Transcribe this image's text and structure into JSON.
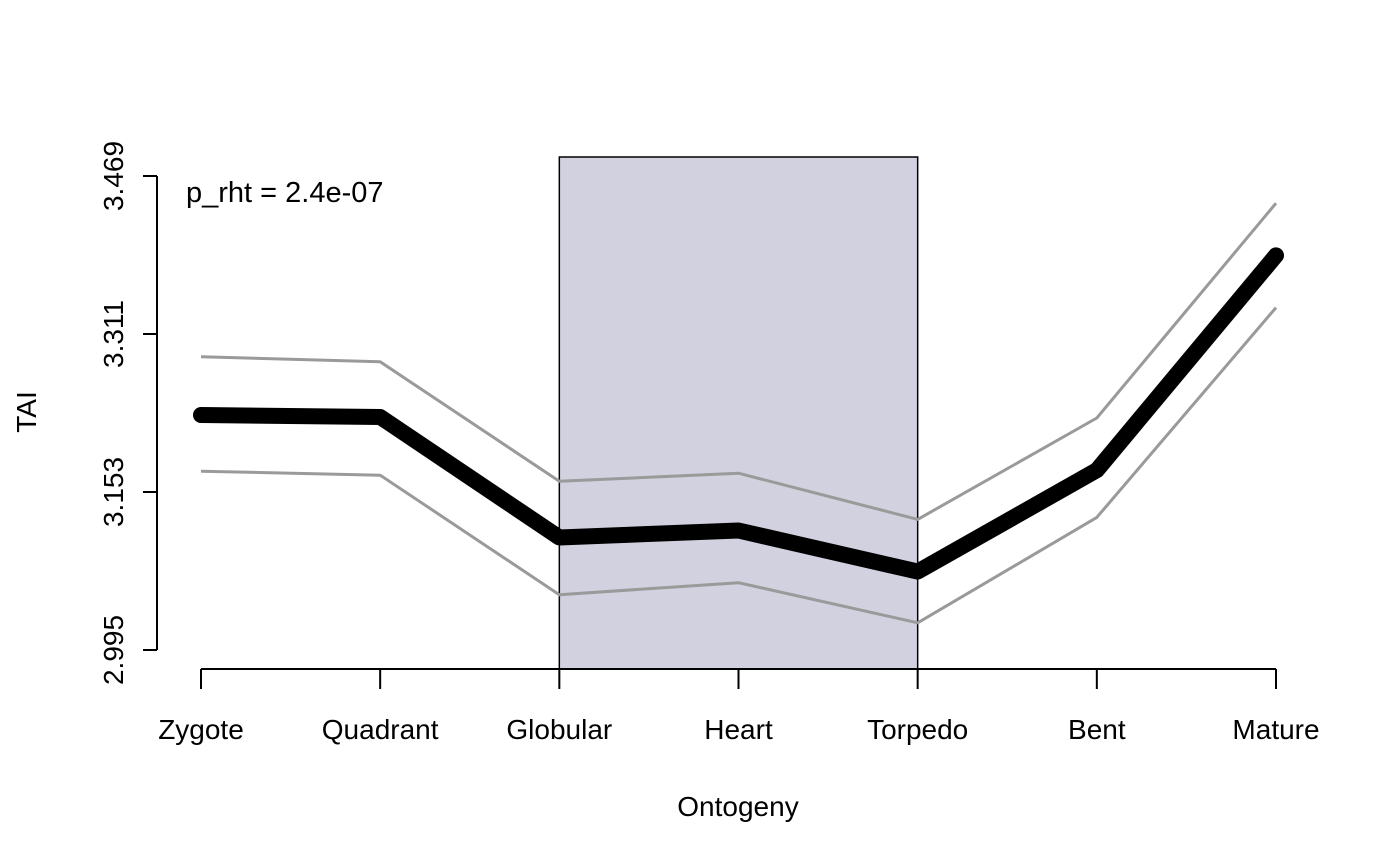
{
  "chart_data": {
    "type": "line",
    "title": "",
    "xlabel": "Ontogeny",
    "ylabel": "TAI",
    "categories": [
      "Zygote",
      "Quadrant",
      "Globular",
      "Heart",
      "Torpedo",
      "Bent",
      "Mature"
    ],
    "series": [
      {
        "name": "TAI",
        "values": [
          3.229,
          3.227,
          3.107,
          3.114,
          3.073,
          3.174,
          3.388
        ]
      },
      {
        "name": "TAI + SD",
        "values": [
          3.287,
          3.282,
          3.163,
          3.171,
          3.125,
          3.226,
          3.44
        ]
      },
      {
        "name": "TAI - SD",
        "values": [
          3.173,
          3.169,
          3.05,
          3.062,
          3.022,
          3.127,
          3.336
        ]
      }
    ],
    "yticks": [
      "2.995",
      "3.153",
      "3.311",
      "3.469"
    ],
    "ylim": [
      2.976,
      3.486
    ],
    "shaded_region": {
      "from": "Globular",
      "to": "Torpedo",
      "color": "#d1d1e0"
    },
    "annotation": "p_rht = 2.4e-07",
    "colors": {
      "mean": "#000000",
      "sd": "#9a9a9a",
      "box_border": "#000000"
    }
  }
}
